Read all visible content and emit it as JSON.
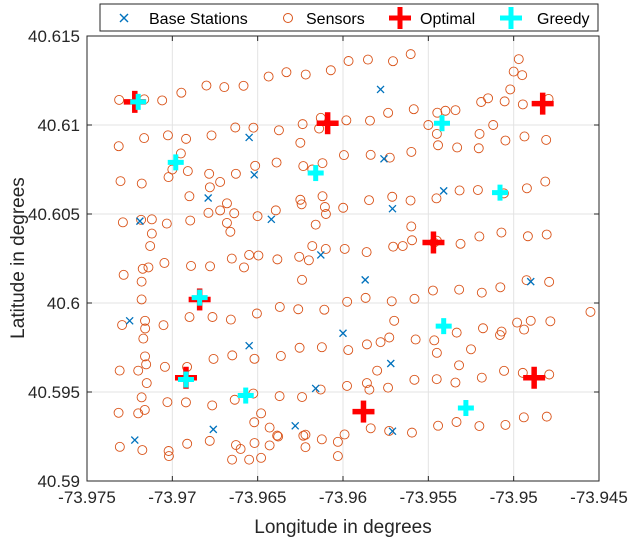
{
  "chart_data": {
    "type": "scatter",
    "xlabel": "Longitude in degrees",
    "ylabel": "Latitude in degrees",
    "xlim": [
      -73.975,
      -73.945
    ],
    "ylim": [
      40.59,
      40.615
    ],
    "x_ticks": [
      "-73.975",
      "-73.97",
      "-73.965",
      "-73.96",
      "-73.955",
      "-73.95",
      "-73.945"
    ],
    "y_ticks": [
      "40.59",
      "40.595",
      "40.6",
      "40.605",
      "40.61",
      "40.615"
    ],
    "grid": true,
    "legend_position": "top",
    "colors": {
      "base": "#0072bd",
      "sensor": "#d95319",
      "optimal": "#ff0000",
      "greedy": "#00ffff"
    },
    "series": [
      {
        "name": "Base Stations",
        "marker": "x",
        "points": [
          [
            -73.9722,
            40.5923
          ],
          [
            -73.9676,
            40.5929
          ],
          [
            -73.9628,
            40.5931
          ],
          [
            -73.9616,
            40.5952
          ],
          [
            -73.9571,
            40.5928
          ],
          [
            -73.9572,
            40.5966
          ],
          [
            -73.9655,
            40.5976
          ],
          [
            -73.96,
            40.5983
          ],
          [
            -73.9725,
            40.599
          ],
          [
            -73.949,
            40.6012
          ],
          [
            -73.9587,
            40.6013
          ],
          [
            -73.9613,
            40.6027
          ],
          [
            -73.9719,
            40.6046
          ],
          [
            -73.9642,
            40.6047
          ],
          [
            -73.9571,
            40.6053
          ],
          [
            -73.9679,
            40.6059
          ],
          [
            -73.9541,
            40.6063
          ],
          [
            -73.9652,
            40.6072
          ],
          [
            -73.9576,
            40.6081
          ],
          [
            -73.9655,
            40.6093
          ],
          [
            -73.9578,
            40.612
          ]
        ]
      },
      {
        "name": "Sensors",
        "marker": "circle",
        "rows": [
          {
            "x0": -73.973,
            "y0": 40.5917,
            "x1": -73.948,
            "y1": 40.5935,
            "n": 20
          },
          {
            "x0": -73.973,
            "y0": 40.594,
            "x1": -73.948,
            "y1": 40.5962,
            "n": 20
          },
          {
            "x0": -73.973,
            "y0": 40.5962,
            "x1": -73.948,
            "y1": 40.5988,
            "n": 20
          },
          {
            "x0": -73.973,
            "y0": 40.5986,
            "x1": -73.948,
            "y1": 40.6012,
            "n": 20
          },
          {
            "x0": -73.973,
            "y0": 40.6018,
            "x1": -73.948,
            "y1": 40.604,
            "n": 20
          },
          {
            "x0": -73.973,
            "y0": 40.6044,
            "x1": -73.948,
            "y1": 40.6066,
            "n": 20
          },
          {
            "x0": -73.973,
            "y0": 40.6068,
            "x1": -73.948,
            "y1": 40.6093,
            "n": 20
          },
          {
            "x0": -73.973,
            "y0": 40.609,
            "x1": -73.948,
            "y1": 40.6115,
            "n": 20
          },
          {
            "x0": -73.973,
            "y0": 40.6112,
            "x1": -73.956,
            "y1": 40.614,
            "n": 15
          }
        ],
        "extra": [
          [
            -73.9702,
            40.5914
          ],
          [
            -73.9665,
            40.5912
          ],
          [
            -73.966,
            40.5918
          ],
          [
            -73.9655,
            40.5912
          ],
          [
            -73.9648,
            40.5913
          ],
          [
            -73.9643,
            40.592
          ],
          [
            -73.9638,
            40.5925
          ],
          [
            -73.9622,
            40.5919
          ],
          [
            -73.9622,
            40.5926
          ],
          [
            -73.9603,
            40.5914
          ],
          [
            -73.9603,
            40.5922
          ],
          [
            -73.9652,
            40.5933
          ],
          [
            -73.9648,
            40.5938
          ],
          [
            -73.9643,
            40.593
          ],
          [
            -73.972,
            40.5938
          ],
          [
            -73.9718,
            40.5947
          ],
          [
            -73.9715,
            40.5955
          ],
          [
            -73.972,
            40.5962
          ],
          [
            -73.9716,
            40.597
          ],
          [
            -73.9717,
            40.598
          ],
          [
            -73.9716,
            40.599
          ],
          [
            -73.9718,
            40.6002
          ],
          [
            -73.9718,
            40.6012
          ],
          [
            -73.9714,
            40.602
          ],
          [
            -73.9713,
            40.6032
          ],
          [
            -73.9712,
            40.6039
          ],
          [
            -73.9712,
            40.6047
          ],
          [
            -73.97,
            40.6075
          ],
          [
            -73.9695,
            40.6084
          ],
          [
            -73.969,
            40.606
          ],
          [
            -73.9678,
            40.6065
          ],
          [
            -73.9672,
            40.6068
          ],
          [
            -73.9668,
            40.6056
          ],
          [
            -73.9672,
            40.6052
          ],
          [
            -73.9668,
            40.6045
          ],
          [
            -73.9666,
            40.604
          ],
          [
            -73.9655,
            40.6027
          ],
          [
            -73.9658,
            40.602
          ],
          [
            -73.9624,
            40.6013
          ],
          [
            -73.962,
            40.6024
          ],
          [
            -73.9618,
            40.6032
          ],
          [
            -73.9616,
            40.6044
          ],
          [
            -73.961,
            40.605
          ],
          [
            -73.9625,
            40.6058
          ],
          [
            -73.9612,
            40.606
          ],
          [
            -73.9618,
            40.6075
          ],
          [
            -73.9625,
            40.609
          ],
          [
            -73.9614,
            40.6098
          ],
          [
            -73.9586,
            40.5955
          ],
          [
            -73.958,
            40.5962
          ],
          [
            -73.9578,
            40.5978
          ],
          [
            -73.957,
            40.599
          ],
          [
            -73.9545,
            40.5972
          ],
          [
            -73.9532,
            40.5965
          ],
          [
            -73.9525,
            40.5974
          ],
          [
            -73.9508,
            40.5982
          ],
          [
            -73.9498,
            40.5989
          ],
          [
            -73.949,
            40.599
          ],
          [
            -73.9455,
            40.5995
          ],
          [
            -73.9565,
            40.6032
          ],
          [
            -73.956,
            40.6043
          ],
          [
            -73.9545,
            40.6035
          ],
          [
            -73.9512,
            40.61
          ],
          [
            -73.952,
            40.6095
          ],
          [
            -73.9515,
            40.6115
          ],
          [
            -73.9495,
            40.6128
          ],
          [
            -73.95,
            40.613
          ],
          [
            -73.9497,
            40.6137
          ],
          [
            -73.9502,
            40.612
          ],
          [
            -73.954,
            40.6108
          ],
          [
            -73.9545,
            40.6095
          ],
          [
            -73.955,
            40.61
          ]
        ]
      },
      {
        "name": "Optimal",
        "marker": "plus",
        "points": [
          [
            -73.9722,
            40.6113
          ],
          [
            -73.9609,
            40.6101
          ],
          [
            -73.9483,
            40.6112
          ],
          [
            -73.9547,
            40.6034
          ],
          [
            -73.9684,
            40.6002
          ],
          [
            -73.9692,
            40.5958
          ],
          [
            -73.9488,
            40.5958
          ],
          [
            -73.9588,
            40.5939
          ]
        ]
      },
      {
        "name": "Greedy",
        "marker": "plus",
        "points": [
          [
            -73.972,
            40.6113
          ],
          [
            -73.9542,
            40.6101
          ],
          [
            -73.9698,
            40.6079
          ],
          [
            -73.9616,
            40.6073
          ],
          [
            -73.9508,
            40.6062
          ],
          [
            -73.9684,
            40.6003
          ],
          [
            -73.9541,
            40.5987
          ],
          [
            -73.9692,
            40.5957
          ],
          [
            -73.9657,
            40.5948
          ],
          [
            -73.9528,
            40.5941
          ]
        ]
      }
    ]
  }
}
